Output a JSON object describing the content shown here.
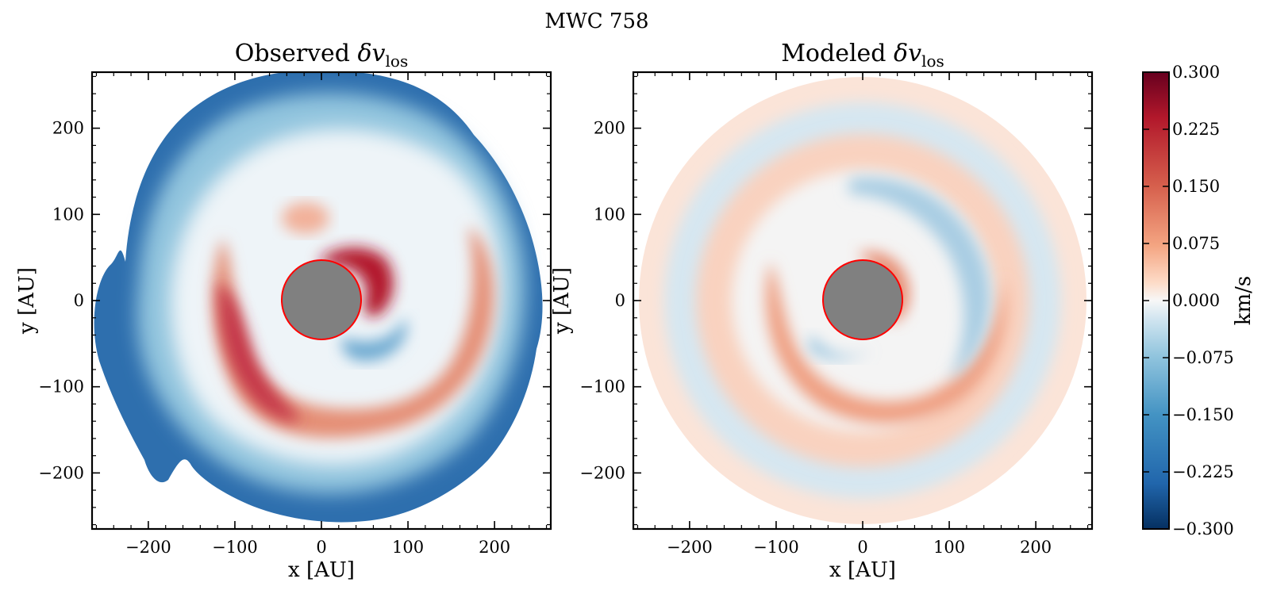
{
  "figure": {
    "suptitle": "MWC 758"
  },
  "panels": [
    {
      "title_main": "Observed ",
      "title_sym": "δv",
      "title_sub": "los",
      "xlabel": "x [AU]",
      "ylabel": "y [AU]"
    },
    {
      "title_main": "Modeled ",
      "title_sym": "δv",
      "title_sub": "los",
      "xlabel": "x [AU]",
      "ylabel": "y [AU]"
    }
  ],
  "colorbar": {
    "label": "km/s",
    "colormap": "RdBu_r",
    "range": [
      -0.3,
      0.3
    ],
    "ticks": [
      "0.300",
      "0.225",
      "0.150",
      "0.075",
      "0.000",
      "−0.075",
      "−0.150",
      "−0.225",
      "−0.300"
    ],
    "colors": {
      "high": "#67001f",
      "mid": "#f7f7f7",
      "low": "#053061"
    }
  },
  "chart_data": [
    {
      "type": "heatmap",
      "subtype": "filled-contour",
      "xlim": [
        -265,
        265
      ],
      "ylim": [
        -265,
        265
      ],
      "xticks": [
        -200,
        -100,
        0,
        100,
        200
      ],
      "yticks": [
        -200,
        -100,
        0,
        100,
        200
      ],
      "xtick_labels": [
        "−200",
        "−100",
        "0",
        "100",
        "200"
      ],
      "ytick_labels": [
        "−200",
        "−100",
        "0",
        "100",
        "200"
      ],
      "disk_outer_radius_au": 255,
      "masked_inner_radius_au": 46,
      "mask_color": "#808080",
      "mask_edge_color": "#ff0000",
      "spiral_arms": "two red (positive) spiral arms, strong near inner edge at ~(55,25) and lower-left ~(-80,-120); blue (negative) outer edge"
    },
    {
      "type": "heatmap",
      "subtype": "filled-contour",
      "xlim": [
        -265,
        265
      ],
      "ylim": [
        -265,
        265
      ],
      "xticks": [
        -200,
        -100,
        0,
        100,
        200
      ],
      "yticks": [
        -200,
        -100,
        0,
        100,
        200
      ],
      "xtick_labels": [
        "−200",
        "−100",
        "0",
        "100",
        "200"
      ],
      "ytick_labels": [
        "−200",
        "−100",
        "0",
        "100",
        "200"
      ],
      "disk_outer_radius_au": 262,
      "masked_inner_radius_au": 46,
      "mask_color": "#808080",
      "mask_edge_color": "#ff0000",
      "spiral_arms": "smooth two-armed model spiral, peak amplitude about ±0.1"
    }
  ]
}
